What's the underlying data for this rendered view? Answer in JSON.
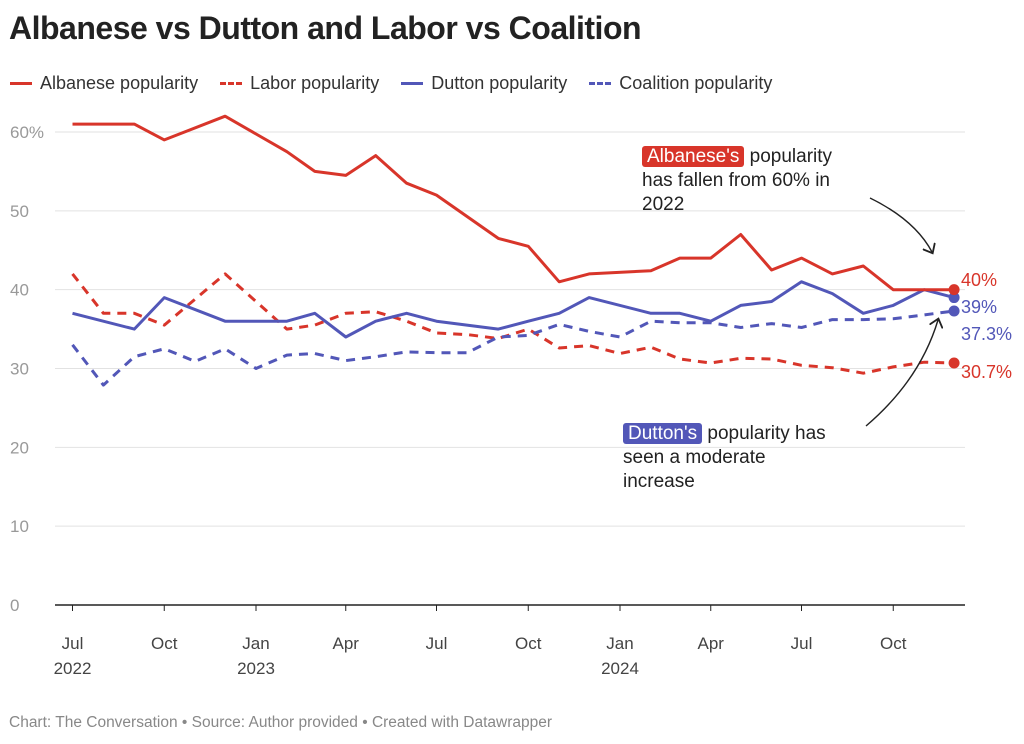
{
  "chart_data": {
    "type": "line",
    "title": "Albanese vs Dutton and Labor vs Coalition",
    "xlabel": "",
    "ylabel": "",
    "ylim": [
      0,
      60
    ],
    "y_ticks": [
      "0",
      "10",
      "20",
      "30",
      "40",
      "50",
      "60%"
    ],
    "y_tick_values": [
      0,
      10,
      20,
      30,
      40,
      50,
      60
    ],
    "x_ticks": [
      {
        "date": "2022-07",
        "label": "Jul",
        "year": "2022"
      },
      {
        "date": "2022-10",
        "label": "Oct",
        "year": ""
      },
      {
        "date": "2023-01",
        "label": "Jan",
        "year": "2023"
      },
      {
        "date": "2023-04",
        "label": "Apr",
        "year": ""
      },
      {
        "date": "2023-07",
        "label": "Jul",
        "year": ""
      },
      {
        "date": "2023-10",
        "label": "Oct",
        "year": ""
      },
      {
        "date": "2024-01",
        "label": "Jan",
        "year": "2024"
      },
      {
        "date": "2024-04",
        "label": "Apr",
        "year": ""
      },
      {
        "date": "2024-07",
        "label": "Jul",
        "year": ""
      },
      {
        "date": "2024-10",
        "label": "Oct",
        "year": ""
      }
    ],
    "grid": true,
    "legend_position": "top",
    "series": [
      {
        "name": "Albanese popularity",
        "color": "#d8352a",
        "dash": false,
        "end_label": "40%",
        "x": [
          "2022-07",
          "2022-09",
          "2022-10",
          "2022-12",
          "2023-02",
          "2023-03",
          "2023-04",
          "2023-05",
          "2023-06",
          "2023-07",
          "2023-09",
          "2023-10",
          "2023-11",
          "2023-12",
          "2024-02",
          "2024-03",
          "2024-04",
          "2024-05",
          "2024-06",
          "2024-07",
          "2024-08",
          "2024-09",
          "2024-10",
          "2024-12"
        ],
        "y": [
          61,
          61,
          59,
          62,
          57.5,
          55,
          54.5,
          57,
          53.5,
          52,
          46.5,
          45.5,
          41,
          42,
          42.4,
          44,
          44,
          47,
          42.5,
          44,
          42,
          43,
          40,
          40
        ]
      },
      {
        "name": "Labor popularity",
        "color": "#d8352a",
        "dash": true,
        "end_label": "30.7%",
        "x": [
          "2022-07",
          "2022-08",
          "2022-09",
          "2022-10",
          "2022-12",
          "2023-02",
          "2023-03",
          "2023-04",
          "2023-05",
          "2023-06",
          "2023-07",
          "2023-08",
          "2023-09",
          "2023-10",
          "2023-11",
          "2023-12",
          "2024-01",
          "2024-02",
          "2024-03",
          "2024-04",
          "2024-05",
          "2024-06",
          "2024-07",
          "2024-08",
          "2024-09",
          "2024-10",
          "2024-11",
          "2024-12"
        ],
        "y": [
          42,
          37,
          37,
          35.5,
          42,
          35,
          35.5,
          37,
          37.2,
          36,
          34.5,
          34.3,
          33.8,
          35,
          32.6,
          32.9,
          31.9,
          32.7,
          31.2,
          30.7,
          31.3,
          31.2,
          30.4,
          30.1,
          29.4,
          30.2,
          30.8,
          30.7
        ]
      },
      {
        "name": "Dutton popularity",
        "color": "#5257b8",
        "dash": false,
        "end_label": "39%",
        "x": [
          "2022-07",
          "2022-09",
          "2022-10",
          "2022-12",
          "2023-02",
          "2023-03",
          "2023-04",
          "2023-05",
          "2023-06",
          "2023-07",
          "2023-09",
          "2023-10",
          "2023-11",
          "2023-12",
          "2024-02",
          "2024-03",
          "2024-04",
          "2024-05",
          "2024-06",
          "2024-07",
          "2024-08",
          "2024-09",
          "2024-10",
          "2024-11",
          "2024-12"
        ],
        "y": [
          37,
          35,
          39,
          36,
          36,
          37,
          34,
          36,
          37,
          36,
          35,
          36,
          37,
          39,
          37,
          37,
          36,
          38,
          38.5,
          41,
          39.5,
          37,
          38,
          40,
          39
        ]
      },
      {
        "name": "Coalition popularity",
        "color": "#5257b8",
        "dash": true,
        "end_label": "37.3%",
        "x": [
          "2022-07",
          "2022-08",
          "2022-09",
          "2022-10",
          "2022-11",
          "2022-12",
          "2023-01",
          "2023-02",
          "2023-03",
          "2023-04",
          "2023-05",
          "2023-06",
          "2023-07",
          "2023-08",
          "2023-09",
          "2023-10",
          "2023-11",
          "2023-12",
          "2024-01",
          "2024-02",
          "2024-03",
          "2024-04",
          "2024-05",
          "2024-06",
          "2024-07",
          "2024-08",
          "2024-09",
          "2024-10",
          "2024-11",
          "2024-12"
        ],
        "y": [
          33,
          27.9,
          31.5,
          32.5,
          30.9,
          32.5,
          30,
          31.7,
          31.9,
          31,
          31.5,
          32.1,
          32,
          32,
          34,
          34.2,
          35.6,
          34.7,
          34,
          36,
          35.8,
          35.8,
          35.2,
          35.7,
          35.2,
          36.2,
          36.2,
          36.3,
          36.8,
          37.3
        ]
      }
    ],
    "annotations": [
      {
        "highlight": "Albanese's",
        "highlight_color": "#d8352a",
        "line1": "popularity",
        "line2": "has fallen from 60% in",
        "line3": "2022"
      },
      {
        "highlight": "Dutton's",
        "highlight_color": "#5257b8",
        "line1": "popularity has",
        "line2": "seen a moderate",
        "line3": "increase"
      }
    ]
  },
  "footer": "Chart: The Conversation • Source: Author provided • Created with Datawrapper"
}
